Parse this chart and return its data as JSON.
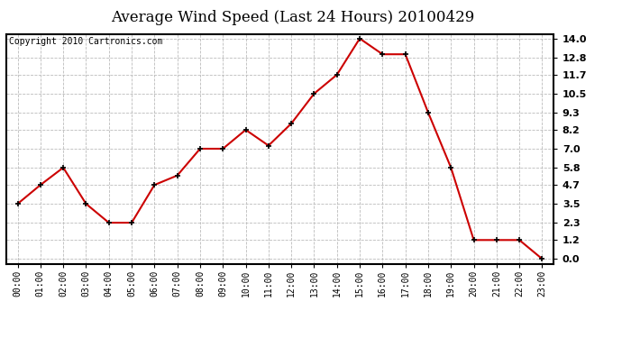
{
  "title": "Average Wind Speed (Last 24 Hours) 20100429",
  "copyright_text": "Copyright 2010 Cartronics.com",
  "hours": [
    0,
    1,
    2,
    3,
    4,
    5,
    6,
    7,
    8,
    9,
    10,
    11,
    12,
    13,
    14,
    15,
    16,
    17,
    18,
    19,
    20,
    21,
    22,
    23
  ],
  "hour_labels": [
    "00:00",
    "01:00",
    "02:00",
    "03:00",
    "04:00",
    "05:00",
    "06:00",
    "07:00",
    "08:00",
    "09:00",
    "10:00",
    "11:00",
    "12:00",
    "13:00",
    "14:00",
    "15:00",
    "16:00",
    "17:00",
    "18:00",
    "19:00",
    "20:00",
    "21:00",
    "22:00",
    "23:00"
  ],
  "values": [
    3.5,
    4.7,
    5.8,
    3.5,
    2.3,
    2.3,
    4.7,
    5.3,
    7.0,
    7.0,
    8.2,
    7.2,
    8.6,
    10.5,
    11.7,
    14.0,
    13.0,
    13.0,
    9.3,
    5.8,
    1.2,
    1.2,
    1.2,
    0.0
  ],
  "line_color": "#cc0000",
  "marker_color": "#000000",
  "background_color": "#ffffff",
  "grid_color": "#bbbbbb",
  "ylim": [
    0.0,
    14.0
  ],
  "yticks": [
    0.0,
    1.2,
    2.3,
    3.5,
    4.7,
    5.8,
    7.0,
    8.2,
    9.3,
    10.5,
    11.7,
    12.8,
    14.0
  ],
  "title_fontsize": 12,
  "copyright_fontsize": 7,
  "tick_fontsize": 8,
  "xtick_fontsize": 7
}
